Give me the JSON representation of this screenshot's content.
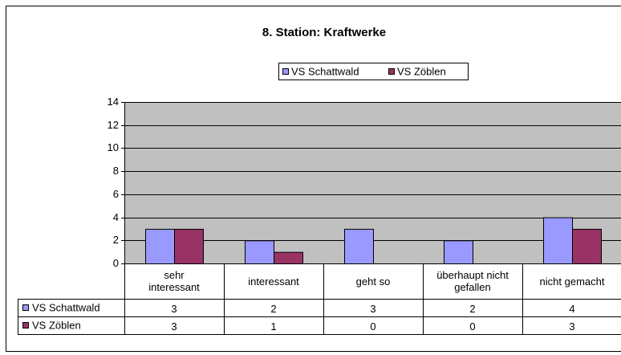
{
  "chart_data": {
    "type": "bar",
    "title": "8. Station: Kraftwerke",
    "categories": [
      "sehr interessant",
      "interessant",
      "geht so",
      "überhaupt nicht gefallen",
      "nicht gemacht"
    ],
    "series": [
      {
        "name": "VS Schattwald",
        "color": "#9999ff",
        "values": [
          3,
          2,
          3,
          2,
          4
        ]
      },
      {
        "name": "VS Zöblen",
        "color": "#993366",
        "values": [
          3,
          1,
          0,
          0,
          3
        ]
      }
    ],
    "ylim": [
      0,
      14
    ],
    "yticks": [
      0,
      2,
      4,
      6,
      8,
      10,
      12,
      14
    ],
    "grid": true,
    "legend": "top",
    "data_table": true
  }
}
